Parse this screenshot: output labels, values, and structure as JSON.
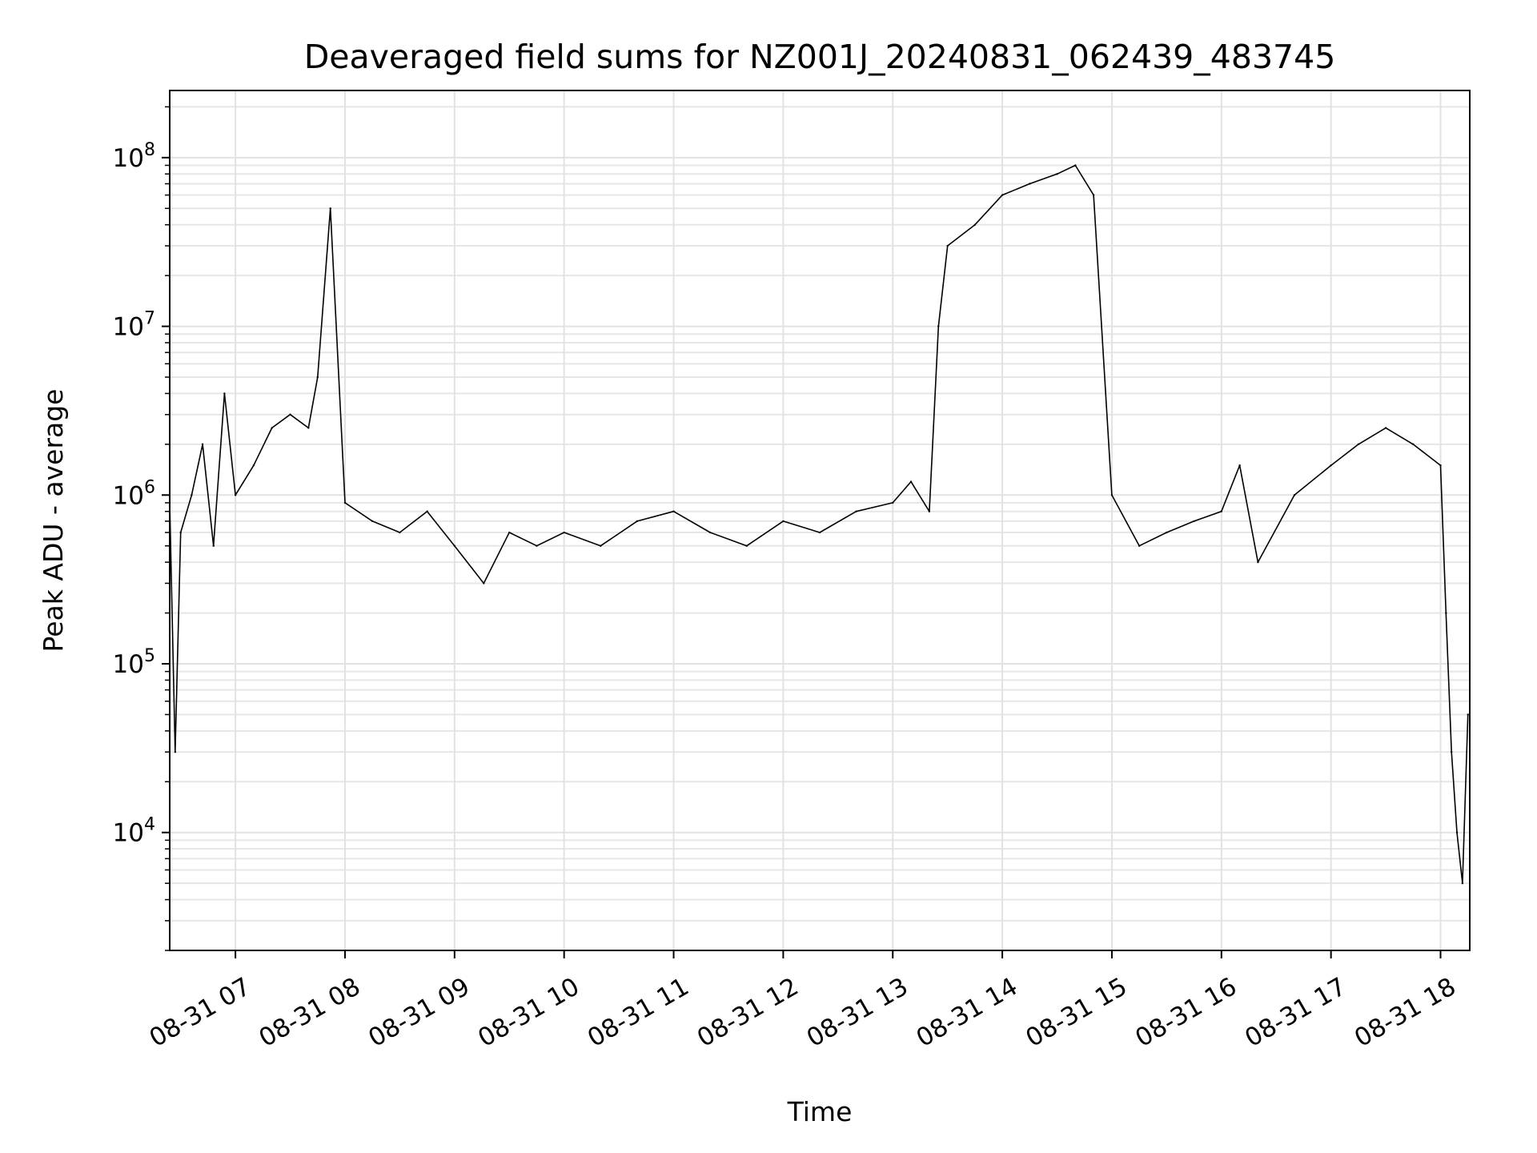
{
  "chart_data": {
    "type": "line",
    "title": "Deaveraged field sums for NZ001J_20240831_062439_483745",
    "xlabel": "Time",
    "ylabel": "Peak ADU - average",
    "yscale": "log",
    "grid": true,
    "grid_minor": true,
    "legend": "none",
    "line_color": "#000000",
    "xlim": [
      "2024-08-31 06:24",
      "2024-08-31 18:16"
    ],
    "ylim": [
      2000,
      250000000
    ],
    "x_ticks": [
      {
        "time": "2024-08-31 07:00",
        "label": "08-31 07"
      },
      {
        "time": "2024-08-31 08:00",
        "label": "08-31 08"
      },
      {
        "time": "2024-08-31 09:00",
        "label": "08-31 09"
      },
      {
        "time": "2024-08-31 10:00",
        "label": "08-31 10"
      },
      {
        "time": "2024-08-31 11:00",
        "label": "08-31 11"
      },
      {
        "time": "2024-08-31 12:00",
        "label": "08-31 12"
      },
      {
        "time": "2024-08-31 13:00",
        "label": "08-31 13"
      },
      {
        "time": "2024-08-31 14:00",
        "label": "08-31 14"
      },
      {
        "time": "2024-08-31 15:00",
        "label": "08-31 15"
      },
      {
        "time": "2024-08-31 16:00",
        "label": "08-31 16"
      },
      {
        "time": "2024-08-31 17:00",
        "label": "08-31 17"
      },
      {
        "time": "2024-08-31 18:00",
        "label": "08-31 18"
      }
    ],
    "y_ticks": [
      {
        "value": 10000,
        "base": "10",
        "exp": "4"
      },
      {
        "value": 100000,
        "base": "10",
        "exp": "5"
      },
      {
        "value": 1000000,
        "base": "10",
        "exp": "6"
      },
      {
        "value": 10000000,
        "base": "10",
        "exp": "7"
      },
      {
        "value": 100000000,
        "base": "10",
        "exp": "8"
      }
    ],
    "series": [
      {
        "x": [
          "2024-08-31 06:24",
          "2024-08-31 06:27",
          "2024-08-31 06:30",
          "2024-08-31 06:36",
          "2024-08-31 06:42",
          "2024-08-31 06:48",
          "2024-08-31 06:54",
          "2024-08-31 07:00",
          "2024-08-31 07:10",
          "2024-08-31 07:20",
          "2024-08-31 07:30",
          "2024-08-31 07:40",
          "2024-08-31 07:45",
          "2024-08-31 07:52",
          "2024-08-31 08:00",
          "2024-08-31 08:15",
          "2024-08-31 08:30",
          "2024-08-31 08:45",
          "2024-08-31 09:00",
          "2024-08-31 09:16",
          "2024-08-31 09:30",
          "2024-08-31 09:45",
          "2024-08-31 10:00",
          "2024-08-31 10:20",
          "2024-08-31 10:40",
          "2024-08-31 11:00",
          "2024-08-31 11:20",
          "2024-08-31 11:40",
          "2024-08-31 12:00",
          "2024-08-31 12:20",
          "2024-08-31 12:40",
          "2024-08-31 13:00",
          "2024-08-31 13:10",
          "2024-08-31 13:20",
          "2024-08-31 13:25",
          "2024-08-31 13:30",
          "2024-08-31 13:45",
          "2024-08-31 14:00",
          "2024-08-31 14:15",
          "2024-08-31 14:30",
          "2024-08-31 14:40",
          "2024-08-31 14:50",
          "2024-08-31 15:00",
          "2024-08-31 15:15",
          "2024-08-31 15:30",
          "2024-08-31 15:45",
          "2024-08-31 16:00",
          "2024-08-31 16:10",
          "2024-08-31 16:20",
          "2024-08-31 16:40",
          "2024-08-31 17:00",
          "2024-08-31 17:15",
          "2024-08-31 17:30",
          "2024-08-31 17:45",
          "2024-08-31 18:00",
          "2024-08-31 18:03",
          "2024-08-31 18:06",
          "2024-08-31 18:09",
          "2024-08-31 18:12",
          "2024-08-31 18:15"
        ],
        "y": [
          900000,
          30000,
          600000,
          1000000,
          2000000,
          500000,
          4000000,
          1000000,
          1500000,
          2500000,
          3000000,
          2500000,
          5000000,
          50000000,
          900000,
          700000,
          600000,
          800000,
          500000,
          300000,
          600000,
          500000,
          600000,
          500000,
          700000,
          800000,
          600000,
          500000,
          700000,
          600000,
          800000,
          900000,
          1200000,
          800000,
          10000000,
          30000000,
          40000000,
          60000000,
          70000000,
          80000000,
          90000000,
          60000000,
          1000000,
          500000,
          600000,
          700000,
          800000,
          1500000,
          400000,
          1000000,
          1500000,
          2000000,
          2500000,
          2000000,
          1500000,
          200000,
          30000,
          10000,
          5000,
          50000
        ]
      }
    ]
  }
}
